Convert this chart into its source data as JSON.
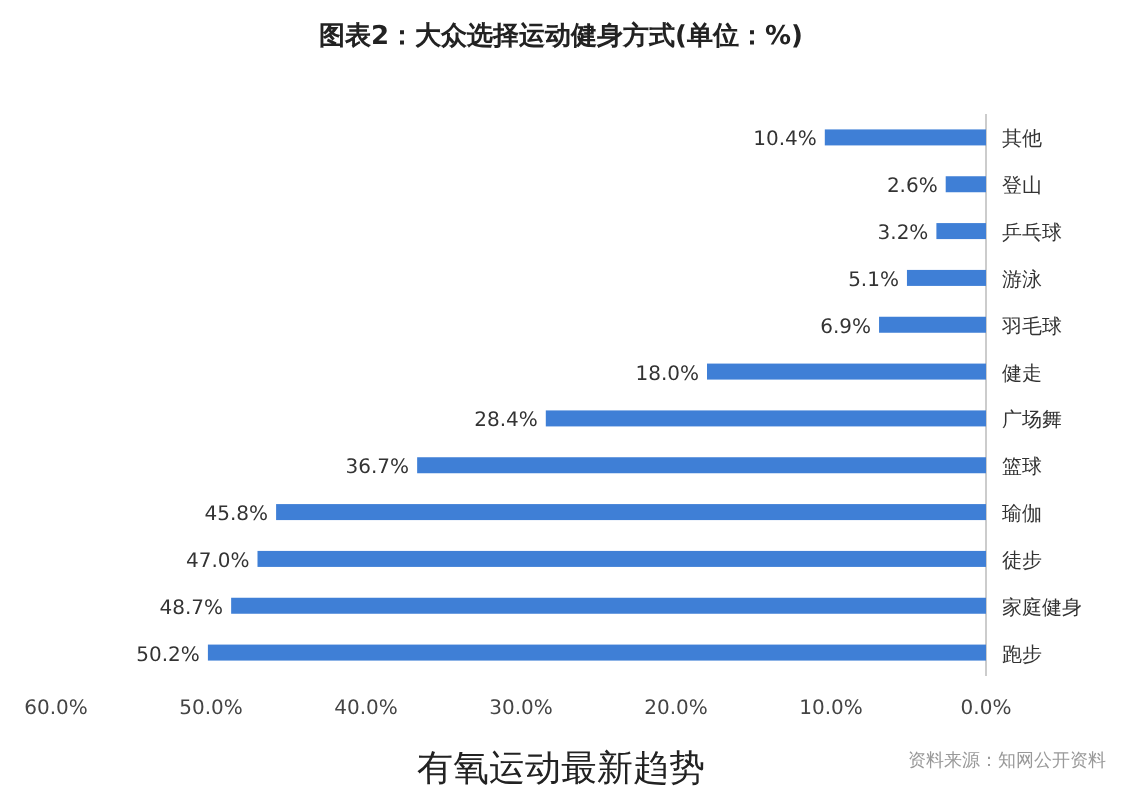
{
  "chart_data": {
    "type": "bar",
    "orientation": "horizontal",
    "title": "图表2：大众选择运动健身方式(单位：%)",
    "categories": [
      "其他",
      "登山",
      "乒乓球",
      "游泳",
      "羽毛球",
      "健走",
      "广场舞",
      "篮球",
      "瑜伽",
      "徒步",
      "家庭健身",
      "跑步"
    ],
    "values": [
      10.4,
      2.6,
      3.2,
      5.1,
      6.9,
      18.0,
      28.4,
      36.7,
      45.8,
      47.0,
      48.7,
      50.2
    ],
    "value_labels": [
      "10.4%",
      "2.6%",
      "3.2%",
      "5.1%",
      "6.9%",
      "18.0%",
      "28.4%",
      "36.7%",
      "45.8%",
      "47.0%",
      "48.7%",
      "50.2%"
    ],
    "color": "#3f7fd6",
    "xlim": [
      60,
      0
    ],
    "xticks": [
      {
        "value": 60,
        "label": "60.0%"
      },
      {
        "value": 50,
        "label": "50.0%"
      },
      {
        "value": 40,
        "label": "40.0%"
      },
      {
        "value": 30,
        "label": "30.0%"
      },
      {
        "value": 20,
        "label": "20.0%"
      },
      {
        "value": 10,
        "label": "10.0%"
      },
      {
        "value": 0,
        "label": "0.0%"
      }
    ],
    "grid": false,
    "annotations": [
      "资料来源：知网公开资料",
      "有氧运动最新趋势"
    ]
  }
}
